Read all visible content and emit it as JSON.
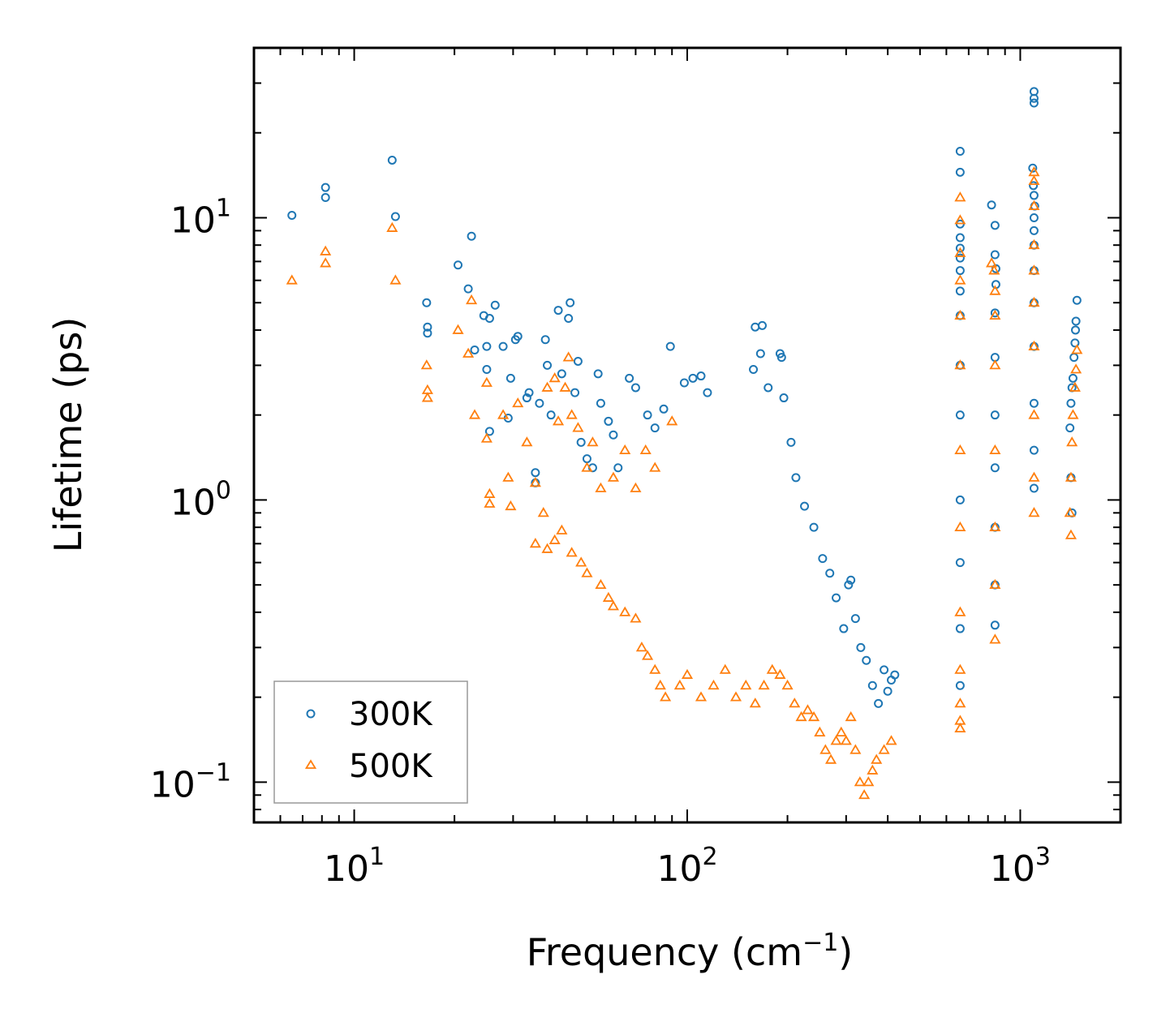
{
  "chart_data": {
    "type": "scatter",
    "xscale": "log",
    "yscale": "log",
    "xlim": [
      5,
      2000
    ],
    "ylim": [
      0.072,
      40
    ],
    "xlabel": {
      "base": "Frequency (cm",
      "sup": "−1",
      "tail": ")"
    },
    "ylabel": "Lifetime (ps)",
    "x_ticks": [
      {
        "value": 10,
        "base": "10",
        "exp": "1"
      },
      {
        "value": 100,
        "base": "10",
        "exp": "2"
      },
      {
        "value": 1000,
        "base": "10",
        "exp": "3"
      }
    ],
    "y_ticks": [
      {
        "value": 0.1,
        "base": "10",
        "exp": "−1"
      },
      {
        "value": 1,
        "base": "10",
        "exp": "0"
      },
      {
        "value": 10,
        "base": "10",
        "exp": "1"
      }
    ],
    "legend_position": "lower-left",
    "series": [
      {
        "name": "300K",
        "marker": "circle",
        "color": "#1f77b4",
        "points": [
          [
            6.5,
            10.2
          ],
          [
            8.2,
            12.8
          ],
          [
            8.2,
            11.8
          ],
          [
            13,
            16
          ],
          [
            13.3,
            10.1
          ],
          [
            16.5,
            5.0
          ],
          [
            16.6,
            4.1
          ],
          [
            16.6,
            3.9
          ],
          [
            20.5,
            6.8
          ],
          [
            22.5,
            8.6
          ],
          [
            22,
            5.6
          ],
          [
            23,
            3.4
          ],
          [
            24.5,
            4.5
          ],
          [
            25,
            3.5
          ],
          [
            25.5,
            4.4
          ],
          [
            26.5,
            4.9
          ],
          [
            25,
            2.9
          ],
          [
            25.5,
            1.75
          ],
          [
            28,
            3.5
          ],
          [
            29,
            1.95
          ],
          [
            29.5,
            2.7
          ],
          [
            30.5,
            3.7
          ],
          [
            31,
            3.8
          ],
          [
            33,
            2.3
          ],
          [
            33.5,
            2.4
          ],
          [
            35,
            1.15
          ],
          [
            35,
            1.25
          ],
          [
            37.5,
            3.7
          ],
          [
            38,
            3.0
          ],
          [
            36,
            2.2
          ],
          [
            39,
            2.0
          ],
          [
            41,
            4.7
          ],
          [
            42,
            2.8
          ],
          [
            44,
            4.4
          ],
          [
            44.5,
            5.0
          ],
          [
            46,
            2.4
          ],
          [
            47,
            3.1
          ],
          [
            48,
            1.6
          ],
          [
            50,
            1.4
          ],
          [
            52,
            1.3
          ],
          [
            54,
            2.8
          ],
          [
            55,
            2.2
          ],
          [
            58,
            1.9
          ],
          [
            60,
            1.7
          ],
          [
            62,
            1.3
          ],
          [
            67,
            2.7
          ],
          [
            70,
            2.5
          ],
          [
            76,
            2.0
          ],
          [
            80,
            1.8
          ],
          [
            85,
            2.1
          ],
          [
            89,
            3.5
          ],
          [
            98,
            2.6
          ],
          [
            104,
            2.7
          ],
          [
            110,
            2.75
          ],
          [
            115,
            2.4
          ],
          [
            160,
            4.1
          ],
          [
            168,
            4.15
          ],
          [
            166,
            3.3
          ],
          [
            158,
            2.9
          ],
          [
            175,
            2.5
          ],
          [
            190,
            3.3
          ],
          [
            192,
            3.2
          ],
          [
            195,
            2.3
          ],
          [
            205,
            1.6
          ],
          [
            212,
            1.2
          ],
          [
            225,
            0.95
          ],
          [
            240,
            0.8
          ],
          [
            255,
            0.62
          ],
          [
            268,
            0.55
          ],
          [
            280,
            0.45
          ],
          [
            295,
            0.35
          ],
          [
            305,
            0.5
          ],
          [
            310,
            0.52
          ],
          [
            320,
            0.38
          ],
          [
            332,
            0.3
          ],
          [
            345,
            0.27
          ],
          [
            360,
            0.22
          ],
          [
            375,
            0.19
          ],
          [
            390,
            0.25
          ],
          [
            400,
            0.21
          ],
          [
            410,
            0.23
          ],
          [
            420,
            0.24
          ],
          [
            660,
            17.2
          ],
          [
            660,
            14.5
          ],
          [
            660,
            9.5
          ],
          [
            660,
            8.5
          ],
          [
            660,
            7.8
          ],
          [
            660,
            7.2
          ],
          [
            660,
            6.5
          ],
          [
            660,
            5.5
          ],
          [
            660,
            4.5
          ],
          [
            660,
            3.0
          ],
          [
            660,
            2.0
          ],
          [
            660,
            1.0
          ],
          [
            660,
            0.6
          ],
          [
            660,
            0.35
          ],
          [
            660,
            0.22
          ],
          [
            820,
            11.1
          ],
          [
            840,
            9.4
          ],
          [
            840,
            7.4
          ],
          [
            845,
            6.6
          ],
          [
            845,
            5.8
          ],
          [
            840,
            4.6
          ],
          [
            840,
            3.2
          ],
          [
            840,
            2.0
          ],
          [
            840,
            1.3
          ],
          [
            840,
            0.8
          ],
          [
            840,
            0.5
          ],
          [
            840,
            0.36
          ],
          [
            1100,
            28
          ],
          [
            1100,
            26.5
          ],
          [
            1100,
            25.5
          ],
          [
            1090,
            15
          ],
          [
            1095,
            13
          ],
          [
            1100,
            12
          ],
          [
            1105,
            11
          ],
          [
            1100,
            10
          ],
          [
            1100,
            9
          ],
          [
            1100,
            8
          ],
          [
            1100,
            6.5
          ],
          [
            1100,
            5
          ],
          [
            1100,
            3.5
          ],
          [
            1100,
            2.2
          ],
          [
            1100,
            1.5
          ],
          [
            1100,
            1.1
          ],
          [
            1480,
            5.1
          ],
          [
            1470,
            4.3
          ],
          [
            1465,
            4.0
          ],
          [
            1460,
            3.6
          ],
          [
            1450,
            3.2
          ],
          [
            1440,
            2.7
          ],
          [
            1430,
            2.5
          ],
          [
            1420,
            2.2
          ],
          [
            1410,
            1.8
          ],
          [
            1420,
            1.2
          ],
          [
            1430,
            0.9
          ]
        ]
      },
      {
        "name": "500K",
        "marker": "triangle",
        "color": "#ff7f0e",
        "points": [
          [
            6.5,
            6.0
          ],
          [
            8.2,
            7.6
          ],
          [
            8.2,
            6.9
          ],
          [
            13,
            9.2
          ],
          [
            13.3,
            6.0
          ],
          [
            16.5,
            3.0
          ],
          [
            16.6,
            2.45
          ],
          [
            16.6,
            2.3
          ],
          [
            20.5,
            4.0
          ],
          [
            22,
            3.3
          ],
          [
            22.5,
            5.1
          ],
          [
            23,
            2.0
          ],
          [
            25,
            2.6
          ],
          [
            25,
            1.65
          ],
          [
            25.5,
            1.05
          ],
          [
            25.5,
            0.97
          ],
          [
            28,
            2.0
          ],
          [
            29,
            1.2
          ],
          [
            29.5,
            0.95
          ],
          [
            31,
            2.2
          ],
          [
            33,
            1.6
          ],
          [
            35,
            1.15
          ],
          [
            37,
            0.9
          ],
          [
            38,
            2.5
          ],
          [
            40,
            2.7
          ],
          [
            41,
            1.9
          ],
          [
            43,
            2.5
          ],
          [
            44,
            3.2
          ],
          [
            45,
            2.0
          ],
          [
            47,
            1.8
          ],
          [
            50,
            1.3
          ],
          [
            52,
            1.6
          ],
          [
            55,
            1.1
          ],
          [
            60,
            1.2
          ],
          [
            65,
            1.5
          ],
          [
            70,
            1.1
          ],
          [
            75,
            1.5
          ],
          [
            80,
            1.3
          ],
          [
            90,
            1.9
          ],
          [
            35,
            0.7
          ],
          [
            38,
            0.67
          ],
          [
            40,
            0.72
          ],
          [
            42,
            0.78
          ],
          [
            45,
            0.65
          ],
          [
            48,
            0.6
          ],
          [
            50,
            0.55
          ],
          [
            55,
            0.5
          ],
          [
            58,
            0.45
          ],
          [
            60,
            0.42
          ],
          [
            65,
            0.4
          ],
          [
            70,
            0.38
          ],
          [
            73,
            0.3
          ],
          [
            76,
            0.28
          ],
          [
            80,
            0.25
          ],
          [
            83,
            0.22
          ],
          [
            86,
            0.2
          ],
          [
            95,
            0.22
          ],
          [
            100,
            0.24
          ],
          [
            110,
            0.2
          ],
          [
            120,
            0.22
          ],
          [
            130,
            0.25
          ],
          [
            140,
            0.2
          ],
          [
            150,
            0.22
          ],
          [
            160,
            0.19
          ],
          [
            170,
            0.22
          ],
          [
            180,
            0.25
          ],
          [
            190,
            0.24
          ],
          [
            200,
            0.22
          ],
          [
            210,
            0.19
          ],
          [
            220,
            0.17
          ],
          [
            230,
            0.18
          ],
          [
            240,
            0.17
          ],
          [
            250,
            0.15
          ],
          [
            260,
            0.13
          ],
          [
            270,
            0.12
          ],
          [
            280,
            0.14
          ],
          [
            290,
            0.15
          ],
          [
            300,
            0.14
          ],
          [
            310,
            0.17
          ],
          [
            320,
            0.13
          ],
          [
            330,
            0.1
          ],
          [
            340,
            0.09
          ],
          [
            350,
            0.1
          ],
          [
            360,
            0.11
          ],
          [
            370,
            0.12
          ],
          [
            390,
            0.13
          ],
          [
            410,
            0.14
          ],
          [
            660,
            11.8
          ],
          [
            660,
            9.8
          ],
          [
            660,
            7.5
          ],
          [
            660,
            6.0
          ],
          [
            660,
            4.5
          ],
          [
            660,
            3.0
          ],
          [
            660,
            1.5
          ],
          [
            660,
            0.8
          ],
          [
            660,
            0.4
          ],
          [
            660,
            0.25
          ],
          [
            660,
            0.19
          ],
          [
            660,
            0.165
          ],
          [
            660,
            0.155
          ],
          [
            820,
            6.9
          ],
          [
            835,
            6.5
          ],
          [
            840,
            5.5
          ],
          [
            840,
            4.5
          ],
          [
            840,
            3.0
          ],
          [
            840,
            1.5
          ],
          [
            840,
            0.8
          ],
          [
            840,
            0.5
          ],
          [
            840,
            0.32
          ],
          [
            1100,
            14.5
          ],
          [
            1100,
            13.5
          ],
          [
            1100,
            11
          ],
          [
            1100,
            8
          ],
          [
            1100,
            6.5
          ],
          [
            1100,
            5
          ],
          [
            1100,
            3.5
          ],
          [
            1100,
            2.0
          ],
          [
            1100,
            1.2
          ],
          [
            1100,
            0.9
          ],
          [
            1480,
            3.4
          ],
          [
            1470,
            2.9
          ],
          [
            1460,
            2.5
          ],
          [
            1440,
            2.0
          ],
          [
            1430,
            1.6
          ],
          [
            1420,
            1.2
          ],
          [
            1410,
            0.9
          ],
          [
            1420,
            0.75
          ]
        ]
      }
    ]
  }
}
